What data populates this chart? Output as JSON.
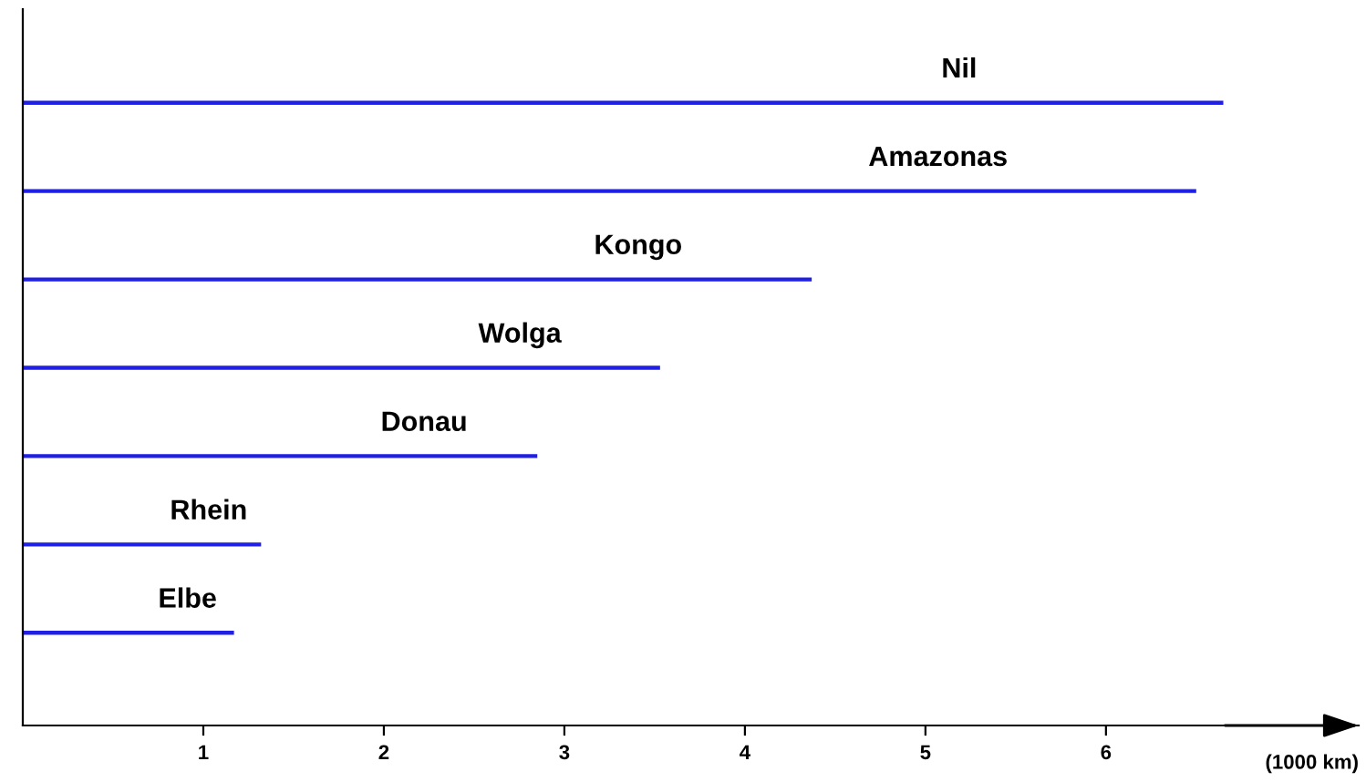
{
  "chart_data": {
    "type": "bar",
    "orientation": "horizontal",
    "xlabel": "(1000 km)",
    "categories": [
      "Nil",
      "Amazonas",
      "Kongo",
      "Wolga",
      "Donau",
      "Rhein",
      "Elbe"
    ],
    "values": [
      6.65,
      6.5,
      4.37,
      3.53,
      2.85,
      1.32,
      1.17
    ],
    "color": "#1f1fe6",
    "xlim": [
      0,
      7.4
    ],
    "xticks": [
      1,
      2,
      3,
      4,
      5,
      6
    ],
    "grid": false,
    "legend": false
  }
}
